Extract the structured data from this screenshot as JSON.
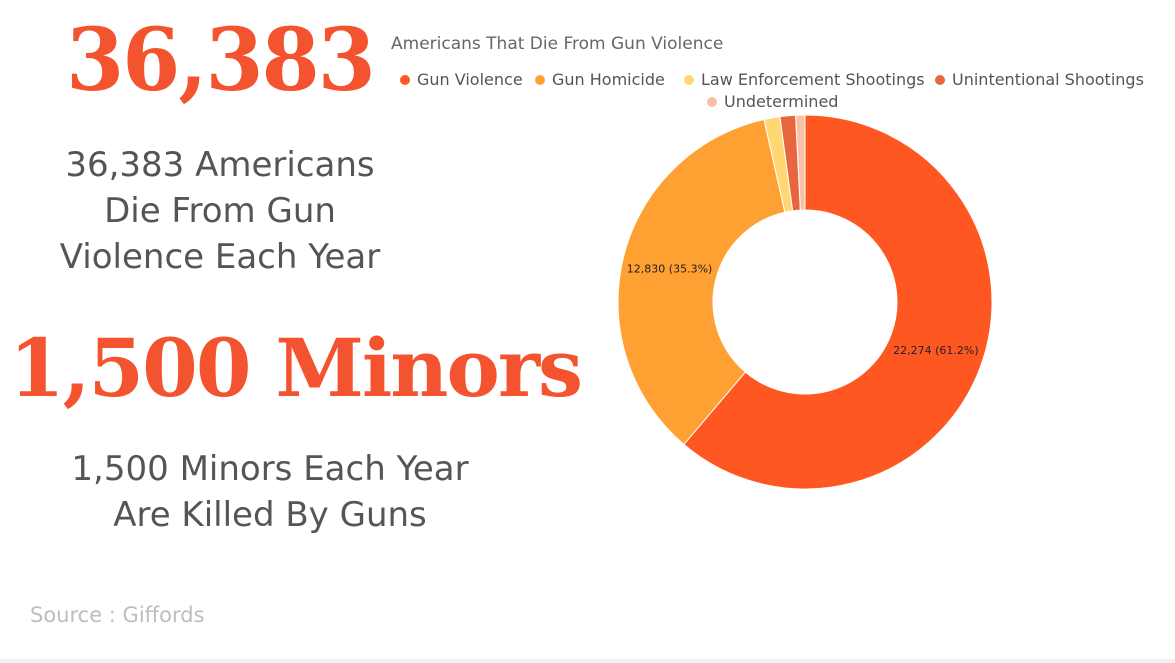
{
  "headline_1": {
    "number": "36,383",
    "caption_lines": [
      "36,383 Americans",
      "Die From Gun",
      "Violence Each Year"
    ]
  },
  "headline_2": {
    "number": "1,500 Minors",
    "caption_lines": [
      "1,500 Minors Each Year",
      "Are Killed By Guns"
    ]
  },
  "source": "Source : Giffords",
  "colors": {
    "headline": "#f4532f"
  },
  "chart_data": {
    "type": "pie",
    "title": "Americans That Die From Gun Violence",
    "legend_placement": "top",
    "series": [
      {
        "name": "Gun Violence",
        "value": 22274,
        "label": "22,274 (61.2%)",
        "color": "#ff5722"
      },
      {
        "name": "Gun Homicide",
        "value": 12830,
        "label": "12,830 (35.3%)",
        "color": "#ffa032"
      },
      {
        "name": "Law Enforcement Shootings",
        "value": 500,
        "label": "",
        "color": "#ffd873"
      },
      {
        "name": "Unintentional Shootings",
        "value": 489,
        "label": "",
        "color": "#e8663d"
      },
      {
        "name": "Undetermined",
        "value": 290,
        "label": "",
        "color": "#f9c0a8"
      }
    ]
  }
}
